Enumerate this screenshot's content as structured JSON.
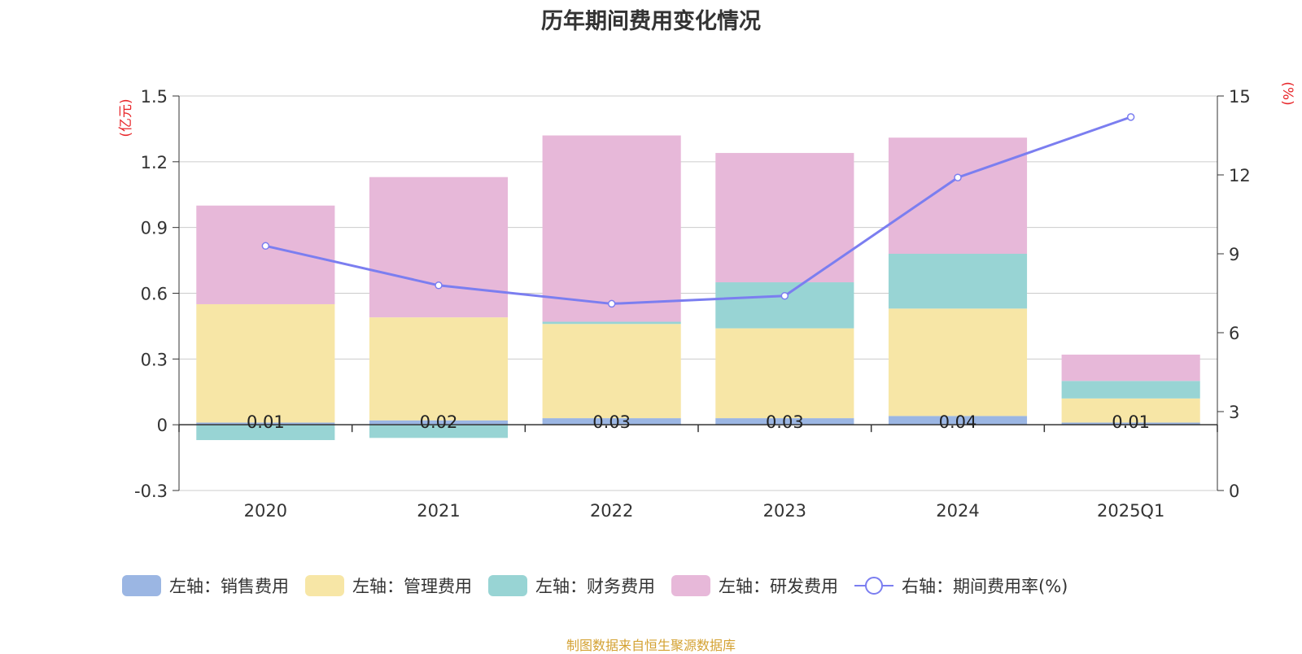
{
  "chart_data": {
    "type": "bar",
    "title": "历年期间费用变化情况",
    "categories": [
      "2020",
      "2021",
      "2022",
      "2023",
      "2024",
      "2025Q1"
    ],
    "left_axis": {
      "unit": "(亿元)",
      "ticks": [
        "1.5",
        "1.2",
        "0.9",
        "0.6",
        "0.3",
        "0",
        "-0.3"
      ],
      "ylim": [
        -0.3,
        1.5
      ]
    },
    "right_axis": {
      "unit": "(%)",
      "ticks": [
        "15",
        "12",
        "9",
        "6",
        "3",
        "0"
      ],
      "ylim": [
        0,
        15
      ]
    },
    "stacked": true,
    "series": [
      {
        "name": "左轴：销售费用",
        "color": "#9bb6e3",
        "values": [
          0.01,
          0.02,
          0.03,
          0.03,
          0.04,
          0.01
        ]
      },
      {
        "name": "左轴：管理费用",
        "color": "#f7e6a6",
        "values": [
          0.54,
          0.47,
          0.43,
          0.41,
          0.49,
          0.11
        ]
      },
      {
        "name": "左轴：财务费用",
        "color": "#98d4d4",
        "values": [
          -0.07,
          -0.06,
          0.01,
          0.21,
          0.25,
          0.08
        ]
      },
      {
        "name": "左轴：研发费用",
        "color": "#e7b8d9",
        "values": [
          0.45,
          0.64,
          0.85,
          0.59,
          0.53,
          0.12
        ]
      }
    ],
    "line_series": {
      "name": "右轴：期间费用率(%)",
      "color": "#7b7ef0",
      "values": [
        9.3,
        7.8,
        7.1,
        7.4,
        11.9,
        14.2
      ]
    },
    "bar_value_labels": [
      "0.01",
      "0.02",
      "0.03",
      "0.03",
      "0.04",
      "0.01"
    ],
    "grid": true,
    "legend_position": "bottom"
  },
  "source_text": "制图数据来自恒生聚源数据库"
}
